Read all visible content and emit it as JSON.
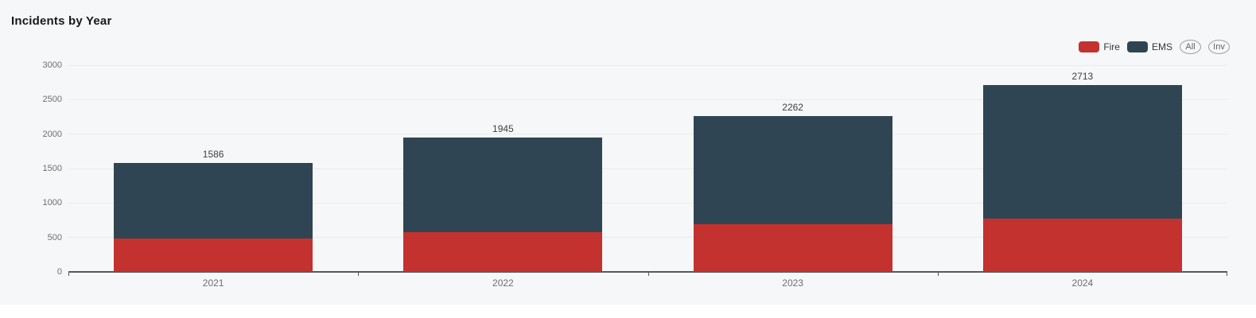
{
  "header": {
    "title": "Incidents by Year"
  },
  "legend": {
    "items": [
      {
        "id": "fire",
        "label": "Fire",
        "color": "#c3322e"
      },
      {
        "id": "ems",
        "label": "EMS",
        "color": "#2f4553"
      }
    ],
    "buttons": [
      {
        "id": "all",
        "label": "All"
      },
      {
        "id": "inv",
        "label": "Inv"
      }
    ]
  },
  "chart_data": {
    "type": "bar",
    "stacked": true,
    "title": "Incidents by Year",
    "categories": [
      "2021",
      "2022",
      "2023",
      "2024"
    ],
    "series": [
      {
        "name": "Fire",
        "color": "#c3322e",
        "values": [
          480,
          575,
          695,
          775
        ]
      },
      {
        "name": "EMS",
        "color": "#2f4553",
        "values": [
          1106,
          1370,
          1567,
          1938
        ]
      }
    ],
    "totals": [
      1586,
      1945,
      2262,
      2713
    ],
    "total_labels": [
      "1586",
      "1945",
      "2262",
      "2713"
    ],
    "xlabel": "",
    "ylabel": "",
    "ylim": [
      0,
      3000
    ],
    "yticks": [
      0,
      500,
      1000,
      1500,
      2000,
      2500,
      3000
    ],
    "grid": true,
    "legend_position": "top-right"
  }
}
